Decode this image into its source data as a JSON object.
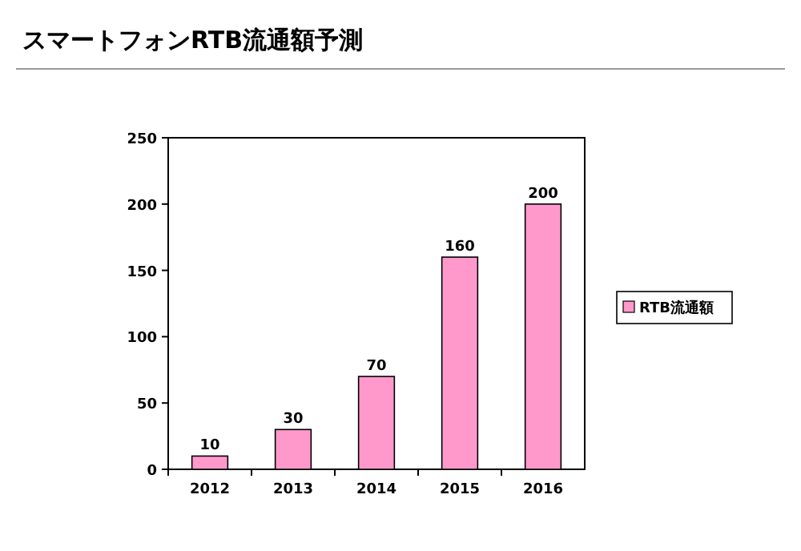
{
  "chart_data": {
    "type": "bar",
    "title": "スマートフォンRTB流通額予測",
    "categories": [
      "2012",
      "2013",
      "2014",
      "2015",
      "2016"
    ],
    "series": [
      {
        "name": "RTB流通額",
        "color": "#ff99cc",
        "values": [
          10,
          30,
          70,
          160,
          200
        ]
      }
    ],
    "ylim": [
      0,
      250
    ],
    "yticks": [
      0,
      50,
      100,
      150,
      200,
      250
    ],
    "data_labels": true,
    "legend": "right"
  }
}
